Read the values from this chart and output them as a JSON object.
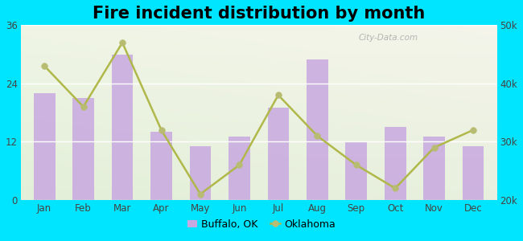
{
  "title": "Fire incident distribution by month",
  "months": [
    "Jan",
    "Feb",
    "Mar",
    "Apr",
    "May",
    "Jun",
    "Jul",
    "Aug",
    "Sep",
    "Oct",
    "Nov",
    "Dec"
  ],
  "buffalo_values": [
    22,
    21,
    30,
    14,
    11,
    13,
    19,
    29,
    12,
    15,
    13,
    11
  ],
  "oklahoma_values": [
    43000,
    36000,
    47000,
    32000,
    21000,
    26000,
    38000,
    31000,
    26000,
    22000,
    29000,
    32000
  ],
  "bar_color": "#c8a8e0",
  "line_color": "#b0b84a",
  "line_marker_color": "#b8bc72",
  "background_color_top": "#e0f0e0",
  "background_color_bottom": "#c8f0d8",
  "outer_background": "#00e5ff",
  "ylim_left": [
    0,
    36
  ],
  "ylim_right": [
    20000,
    50000
  ],
  "yticks_left": [
    0,
    12,
    24,
    36
  ],
  "yticks_right": [
    20000,
    30000,
    40000,
    50000
  ],
  "ytick_labels_right": [
    "20k",
    "30k",
    "40k",
    "50k"
  ],
  "legend_buffalo_label": "Buffalo, OK",
  "legend_oklahoma_label": "Oklahoma",
  "title_fontsize": 15,
  "watermark_text": "City-Data.com"
}
